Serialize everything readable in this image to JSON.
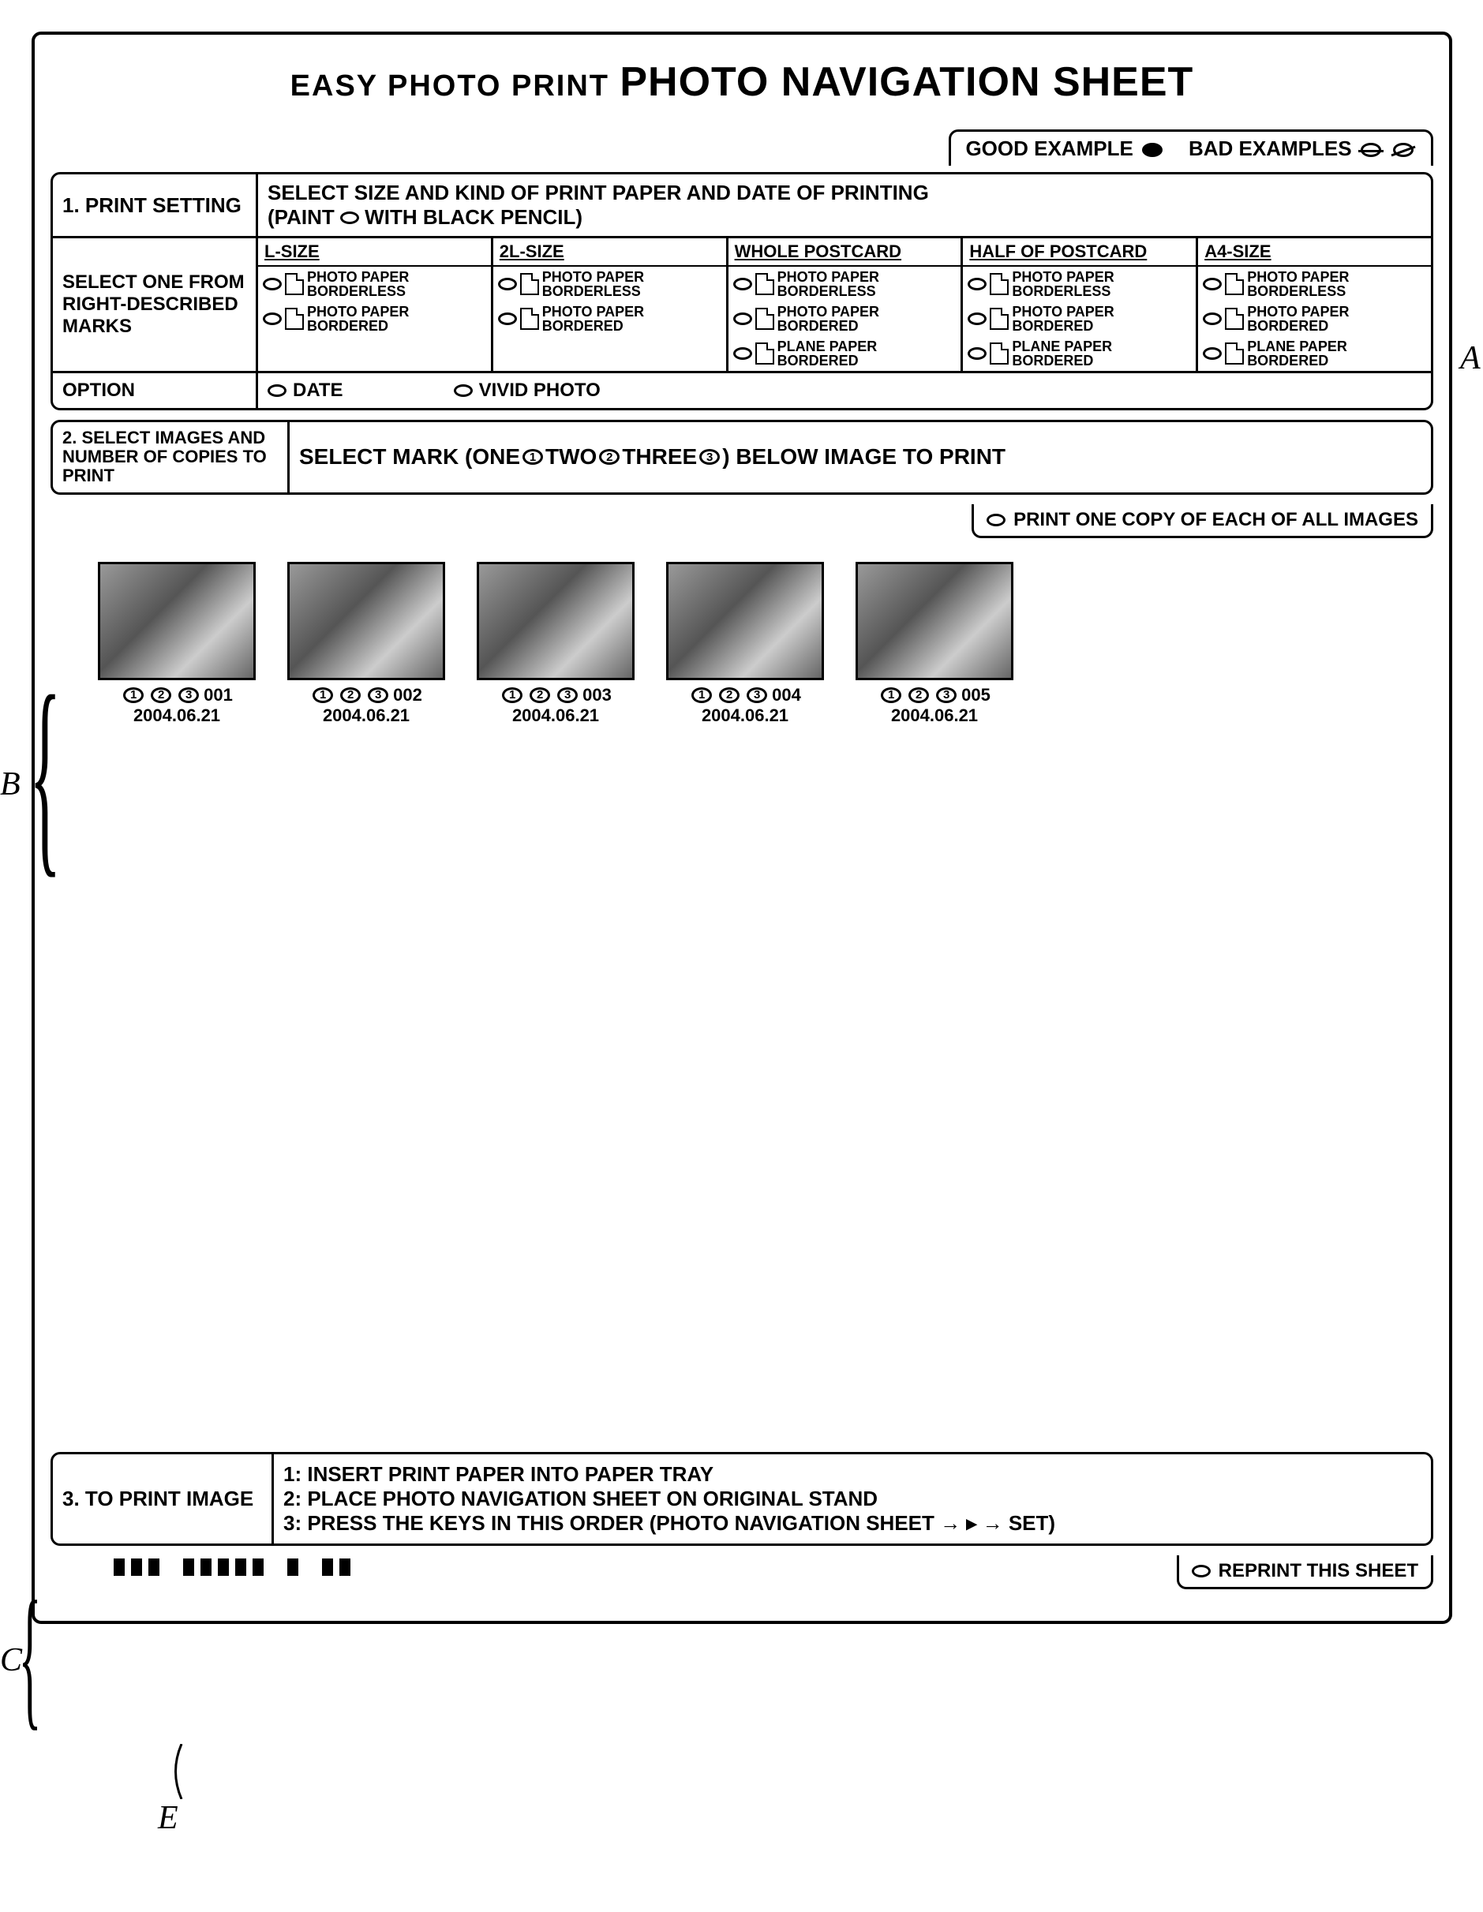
{
  "title": {
    "small": "EASY PHOTO PRINT",
    "large": "PHOTO NAVIGATION SHEET"
  },
  "legend": {
    "good": "GOOD EXAMPLE",
    "bad": "BAD EXAMPLES"
  },
  "section1": {
    "num": "1.",
    "label": "PRINT SETTING",
    "instr1": "SELECT SIZE AND KIND OF PRINT PAPER AND DATE OF PRINTING",
    "instr2": "(PAINT ",
    "instr3": " WITH BLACK PENCIL)",
    "select_label": "SELECT ONE FROM RIGHT-DESCRIBED MARKS",
    "sizes": [
      {
        "name": "L-SIZE",
        "opts": [
          "PHOTO PAPER BORDERLESS",
          "PHOTO PAPER BORDERED"
        ]
      },
      {
        "name": "2L-SIZE",
        "opts": [
          "PHOTO PAPER BORDERLESS",
          "PHOTO PAPER BORDERED"
        ]
      },
      {
        "name": "WHOLE POSTCARD",
        "opts": [
          "PHOTO PAPER BORDERLESS",
          "PHOTO PAPER BORDERED",
          "PLANE PAPER BORDERED"
        ]
      },
      {
        "name": "HALF OF POSTCARD",
        "opts": [
          "PHOTO PAPER BORDERLESS",
          "PHOTO PAPER BORDERED",
          "PLANE PAPER BORDERED"
        ]
      },
      {
        "name": "A4-SIZE",
        "opts": [
          "PHOTO PAPER BORDERLESS",
          "PHOTO PAPER BORDERED",
          "PLANE PAPER BORDERED"
        ]
      }
    ],
    "option_label": "OPTION",
    "options": [
      "DATE",
      "VIVID PHOTO"
    ]
  },
  "section2": {
    "num": "2.",
    "label": "SELECT IMAGES AND NUMBER OF COPIES TO PRINT",
    "instr_a": "SELECT MARK (ONE ",
    "instr_b": " TWO ",
    "instr_c": " THREE ",
    "instr_d": " ) BELOW IMAGE TO PRINT",
    "print_all": "PRINT ONE COPY OF EACH OF ALL IMAGES",
    "thumbs": [
      {
        "id": "001",
        "date": "2004.06.21"
      },
      {
        "id": "002",
        "date": "2004.06.21"
      },
      {
        "id": "003",
        "date": "2004.06.21"
      },
      {
        "id": "004",
        "date": "2004.06.21"
      },
      {
        "id": "005",
        "date": "2004.06.21"
      }
    ]
  },
  "section3": {
    "num": "3.",
    "label": "TO PRINT IMAGE",
    "step1": "1: INSERT PRINT PAPER INTO PAPER TRAY",
    "step2": "2: PLACE PHOTO NAVIGATION SHEET ON ORIGINAL STAND",
    "step3": "3: PRESS THE KEYS IN THIS ORDER (PHOTO NAVIGATION SHEET → ▸ → SET)",
    "reprint": "REPRINT THIS SHEET"
  },
  "annotations": {
    "A": "A",
    "B": "B",
    "C": "C",
    "E": "E"
  }
}
